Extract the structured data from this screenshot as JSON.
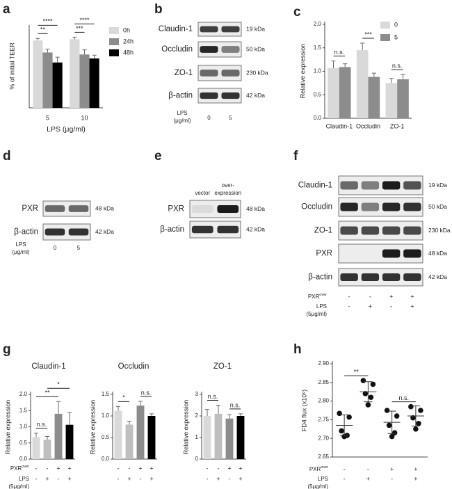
{
  "chart_data": [
    {
      "panel": "a",
      "type": "bar",
      "ylabel": "% of initial TEER",
      "xlabel": "LPS (μg/ml)",
      "ylim": [
        0,
        120
      ],
      "categories": [
        "5",
        "10"
      ],
      "series": [
        {
          "name": "0h",
          "color": "#d9d9d9",
          "values": [
            101,
            103
          ],
          "errors": [
            3,
            3
          ]
        },
        {
          "name": "24h",
          "color": "#8c8c8c",
          "values": [
            83,
            80
          ],
          "errors": [
            5,
            7
          ]
        },
        {
          "name": "48h",
          "color": "#000000",
          "values": [
            68,
            74
          ],
          "errors": [
            8,
            5
          ]
        }
      ],
      "annotations": [
        {
          "label": "**",
          "category": 0,
          "between": [
            0,
            1
          ]
        },
        {
          "label": "****",
          "category": 0,
          "between": [
            0,
            2
          ]
        },
        {
          "label": "***",
          "category": 1,
          "between": [
            0,
            1
          ]
        },
        {
          "label": "****",
          "category": 1,
          "between": [
            0,
            2
          ]
        }
      ]
    },
    {
      "panel": "c",
      "type": "bar",
      "ylabel": "Relative expression",
      "ylim": [
        0,
        2
      ],
      "yticks": [
        {
          "value": 0,
          "label": "0.0"
        },
        0.5,
        {
          "value": 1,
          "label": "1.0"
        },
        1.5,
        {
          "value": 2,
          "label": "2.0"
        }
      ],
      "categories": [
        "Claudin-1",
        "Occludin",
        "ZO-1"
      ],
      "series": [
        {
          "name": "0",
          "color": "#d9d9d9",
          "values": [
            1.07,
            1.45,
            0.75
          ],
          "errors": [
            0.15,
            0.15,
            0.1
          ]
        },
        {
          "name": "5",
          "color": "#8c8c8c",
          "values": [
            1.09,
            0.88,
            0.83
          ],
          "errors": [
            0.07,
            0.08,
            0.1
          ]
        }
      ],
      "annotations": [
        {
          "label": "n.s.",
          "category": 0,
          "between": [
            0,
            1
          ]
        },
        {
          "label": "***",
          "category": 1,
          "between": [
            0,
            1
          ]
        },
        {
          "label": "n.s.",
          "category": 2,
          "between": [
            0,
            1
          ]
        }
      ]
    },
    {
      "panel": "g",
      "type": "bar",
      "title": "Claudin-1",
      "ylabel": "Relative expression",
      "ylim": [
        0,
        2
      ],
      "yticks": [
        {
          "value": 0,
          "label": "0.0"
        },
        0.5,
        {
          "value": 1,
          "label": "1.0"
        },
        1.5,
        {
          "value": 2,
          "label": "2.0"
        }
      ],
      "values": [
        0.68,
        0.6,
        1.4,
        1.06
      ],
      "errors": [
        0.12,
        0.1,
        0.38,
        0.38
      ],
      "colors": [
        "#d9d9d9",
        "#bfbfbf",
        "#8c8c8c",
        "#000000"
      ],
      "annotations": [
        {
          "label": "n.s.",
          "between": [
            0,
            1
          ]
        },
        {
          "label": "**",
          "between": [
            0,
            2
          ]
        },
        {
          "label": "*",
          "between": [
            1,
            3
          ]
        }
      ],
      "conditions": [
        {
          "label": "PXR",
          "sup": "over",
          "signs": [
            "-",
            "-",
            "+",
            "+"
          ]
        },
        {
          "label": [
            "LPS",
            "(5μg/ml)"
          ],
          "signs": [
            "-",
            "+",
            "-",
            "+"
          ]
        }
      ]
    },
    {
      "type": "bar",
      "title": "Occludin",
      "ylabel": "Relative expression",
      "ylim": [
        0,
        1.5
      ],
      "yticks": [
        {
          "value": 0,
          "label": "0.0"
        },
        0.5,
        {
          "value": 1,
          "label": "1.0"
        },
        1.5
      ],
      "values": [
        1.12,
        0.8,
        1.24,
        1.0
      ],
      "errors": [
        0.1,
        0.08,
        0.1,
        0.05
      ],
      "colors": [
        "#d9d9d9",
        "#bfbfbf",
        "#8c8c8c",
        "#000000"
      ],
      "annotations": [
        {
          "label": "*",
          "between": [
            0,
            1
          ]
        },
        {
          "label": "n.s.",
          "between": [
            2,
            3
          ]
        }
      ],
      "conditions": [
        {
          "signs": [
            "-",
            "-",
            "+",
            "+"
          ]
        },
        {
          "signs": [
            "-",
            "+",
            "-",
            "+"
          ]
        }
      ]
    },
    {
      "type": "bar",
      "title": "ZO-1",
      "ylabel": "Relative expression",
      "ylim": [
        0,
        3
      ],
      "yticks": [
        0,
        1,
        2,
        3
      ],
      "values": [
        2.0,
        2.1,
        1.88,
        2.0
      ],
      "errors": [
        0.3,
        0.4,
        0.18,
        0.1
      ],
      "colors": [
        "#d9d9d9",
        "#bfbfbf",
        "#8c8c8c",
        "#000000"
      ],
      "annotations": [
        {
          "label": "n.s.",
          "between": [
            0,
            1
          ]
        },
        {
          "label": "n.s.",
          "between": [
            2,
            3
          ]
        }
      ],
      "conditions": [
        {
          "signs": [
            "-",
            "-",
            "+",
            "+"
          ]
        },
        {
          "signs": [
            "-",
            "+",
            "-",
            "+"
          ]
        }
      ]
    },
    {
      "panel": "h",
      "type": "dot",
      "ylabel": "FD4 flux (x10⁹)",
      "ylim": [
        2.65,
        2.9
      ],
      "yticks": [
        2.65,
        {
          "value": 2.7,
          "label": "2.70"
        },
        2.75,
        {
          "value": 2.8,
          "label": "2.80"
        },
        2.85,
        {
          "value": 2.9,
          "label": "2.90"
        }
      ],
      "values": [
        [
          2.767,
          2.757,
          2.72,
          2.708,
          2.705
        ],
        [
          2.855,
          2.845,
          2.82,
          2.81,
          2.79
        ],
        [
          2.775,
          2.76,
          2.735,
          2.715,
          2.705
        ],
        [
          2.785,
          2.775,
          2.755,
          2.74,
          2.725
        ]
      ],
      "means": [
        2.735,
        2.825,
        2.743,
        2.76
      ],
      "sd": [
        0.028,
        0.027,
        0.03,
        0.027
      ],
      "annotations": [
        {
          "label": "**",
          "between": [
            0,
            1
          ]
        },
        {
          "label": "n.s.",
          "between": [
            2,
            3
          ]
        }
      ],
      "conditions": [
        {
          "label": "PXR",
          "sup": "over",
          "signs": [
            "-",
            "-",
            "+",
            "+"
          ]
        },
        {
          "label": [
            "LPS",
            "(5μg/ml)"
          ],
          "signs": [
            "-",
            "+",
            "-",
            "+"
          ]
        }
      ]
    }
  ],
  "blots": [
    {
      "panel": "b",
      "rows": [
        {
          "label": "Claudin-1",
          "kda": "19 kDa"
        },
        {
          "label": "Occludin",
          "kda": "50 kDa"
        },
        {
          "label": "ZO-1",
          "kda": "230 kDa"
        },
        {
          "label": "β-actin",
          "kda": "42 kDa"
        }
      ],
      "lane_title": [
        "LPS",
        "(μg/ml)"
      ],
      "lanes": [
        "0",
        "5"
      ]
    },
    {
      "panel": "d",
      "rows": [
        {
          "label": "PXR",
          "kda": "48 kDa"
        },
        {
          "label": "β-actin",
          "kda": "42 kDa"
        }
      ],
      "lane_title": [
        "LPS",
        "(μg/ml)"
      ],
      "lanes": [
        "0",
        "5"
      ]
    },
    {
      "panel": "e",
      "rows": [
        {
          "label": "PXR",
          "kda": "48 kDa"
        },
        {
          "label": "β-actin",
          "kda": "42 kDa"
        }
      ],
      "lanes": [
        [
          "vector"
        ],
        [
          "over-",
          "expression"
        ]
      ]
    },
    {
      "panel": "f",
      "rows": [
        {
          "label": "Claudin-1",
          "kda": "19 kDa"
        },
        {
          "label": "Occludin",
          "kda": "50 kDa"
        },
        {
          "label": "ZO-1",
          "kda": "230 kDa"
        },
        {
          "label": "PXR",
          "kda": "48 kDa"
        },
        {
          "label": "β-actin",
          "kda": "42 kDa"
        }
      ],
      "conditions": [
        {
          "label": "PXR",
          "sup": "over",
          "signs": [
            "-",
            "-",
            "+",
            "+"
          ]
        },
        {
          "label": [
            "LPS",
            "(5μg/ml)"
          ],
          "signs": [
            "-",
            "+",
            "-",
            "+"
          ]
        }
      ]
    }
  ]
}
